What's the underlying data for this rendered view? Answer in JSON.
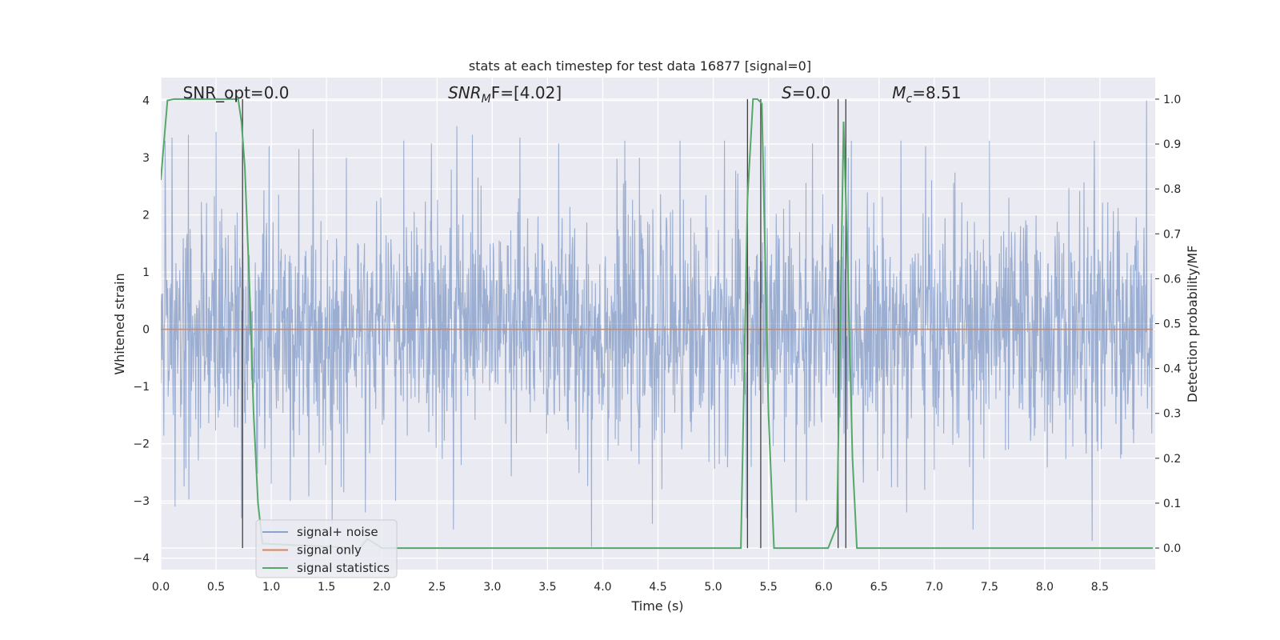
{
  "chart_data": {
    "type": "line",
    "title": "stats at each timestep for test data 16877 [signal=0]",
    "xlabel": "Time (s)",
    "ylabel": "Whitened strain",
    "y2label": "Detection probability/MF",
    "xlim": [
      0,
      9.0
    ],
    "ylim": [
      -4.2,
      4.4
    ],
    "y2lim": [
      -0.048,
      1.048
    ],
    "x_ticks": [
      "0.0",
      "0.5",
      "1.0",
      "1.5",
      "2.0",
      "2.5",
      "3.0",
      "3.5",
      "4.0",
      "4.5",
      "5.0",
      "5.5",
      "6.0",
      "6.5",
      "7.0",
      "7.5",
      "8.0",
      "8.5"
    ],
    "y_ticks": [
      "4",
      "3",
      "2",
      "1",
      "0",
      "−1",
      "−2",
      "−3",
      "−4"
    ],
    "y2_ticks": [
      "1.0",
      "0.9",
      "0.8",
      "0.7",
      "0.6",
      "0.5",
      "0.4",
      "0.3",
      "0.2",
      "0.1",
      "0.0"
    ],
    "grid": true,
    "legend_position": "lower-left",
    "annotations": [
      {
        "prefix": "SNR_opt=0.0",
        "sub": "",
        "suffix": "",
        "x": 0.2,
        "italic": false
      },
      {
        "prefix": "SNR",
        "sub": "M",
        "suffix": "F=[4.02]",
        "x": 2.6,
        "italic": true
      },
      {
        "prefix": "S",
        "sub": "",
        "suffix": "=0.0",
        "x": 5.62,
        "italic": true
      },
      {
        "prefix": "M",
        "sub": "c",
        "suffix": "=8.51",
        "x": 6.62,
        "italic": true
      }
    ],
    "series": [
      {
        "name": "signal+ noise",
        "color": "#4c72b0",
        "axis": "left",
        "noise_sigma": 1.0,
        "sample_rate_hz": 256,
        "peaks": [
          [
            0.04,
            3.3
          ],
          [
            0.1,
            3.35
          ],
          [
            0.25,
            3.4
          ],
          [
            0.5,
            3.45
          ],
          [
            0.98,
            3.2
          ],
          [
            1.25,
            3.15
          ],
          [
            1.38,
            3.5
          ],
          [
            2.2,
            3.3
          ],
          [
            2.45,
            3.25
          ],
          [
            2.68,
            3.55
          ],
          [
            2.82,
            3.4
          ],
          [
            3.25,
            3.35
          ],
          [
            3.6,
            3.25
          ],
          [
            4.2,
            3.3
          ],
          [
            4.7,
            3.3
          ],
          [
            5.1,
            3.3
          ],
          [
            5.47,
            3.2
          ],
          [
            5.9,
            3.25
          ],
          [
            6.25,
            3.3
          ],
          [
            6.7,
            3.3
          ],
          [
            6.92,
            3.2
          ],
          [
            7.5,
            3.3
          ],
          [
            8.45,
            3.3
          ],
          [
            8.92,
            4.0
          ]
        ],
        "troughs": [
          [
            0.13,
            -3.1
          ],
          [
            0.73,
            -3.3
          ],
          [
            1.0,
            -2.7
          ],
          [
            1.55,
            -3.4
          ],
          [
            1.85,
            -3.2
          ],
          [
            2.65,
            -3.5
          ],
          [
            3.9,
            -3.8
          ],
          [
            4.45,
            -3.4
          ],
          [
            5.3,
            -3.3
          ],
          [
            5.75,
            -3.2
          ],
          [
            6.2,
            -3.3
          ],
          [
            6.75,
            -3.2
          ],
          [
            7.35,
            -3.5
          ],
          [
            8.43,
            -3.7
          ]
        ]
      },
      {
        "name": "signal only",
        "color": "#dd8452",
        "axis": "left",
        "x": [
          0.0,
          8.98
        ],
        "y": [
          0.0,
          0.0
        ]
      },
      {
        "name": "signal statistics",
        "color": "#55a868",
        "axis": "right",
        "x": [
          0.0,
          0.06,
          0.12,
          0.2,
          0.7,
          0.73,
          0.76,
          0.8,
          0.84,
          0.88,
          0.92,
          1.8,
          1.87,
          1.94,
          2.0,
          2.2,
          2.3,
          5.25,
          5.31,
          5.36,
          5.4,
          5.44,
          5.5,
          5.55,
          6.04,
          6.12,
          6.18,
          6.22,
          6.26,
          6.3,
          8.98
        ],
        "y": [
          0.82,
          0.997,
          1.0,
          1.0,
          1.0,
          0.95,
          0.85,
          0.6,
          0.3,
          0.1,
          0.01,
          0.0,
          0.02,
          0.01,
          0.0,
          0.0,
          0.0,
          0.0,
          0.78,
          1.0,
          1.0,
          0.99,
          0.3,
          0.0,
          0.0,
          0.05,
          0.95,
          0.6,
          0.2,
          0.0,
          0.0
        ]
      }
    ],
    "vertical_lines": [
      {
        "x": 0.74,
        "ymin": 0.0,
        "ymax": 1.0,
        "axis": "right"
      },
      {
        "x": 5.31,
        "ymin": 0.0,
        "ymax": 1.0,
        "axis": "right"
      },
      {
        "x": 5.43,
        "ymin": 0.0,
        "ymax": 1.0,
        "axis": "right"
      },
      {
        "x": 6.13,
        "ymin": 0.0,
        "ymax": 1.0,
        "axis": "right"
      },
      {
        "x": 6.2,
        "ymin": 0.0,
        "ymax": 1.0,
        "axis": "right"
      }
    ]
  }
}
